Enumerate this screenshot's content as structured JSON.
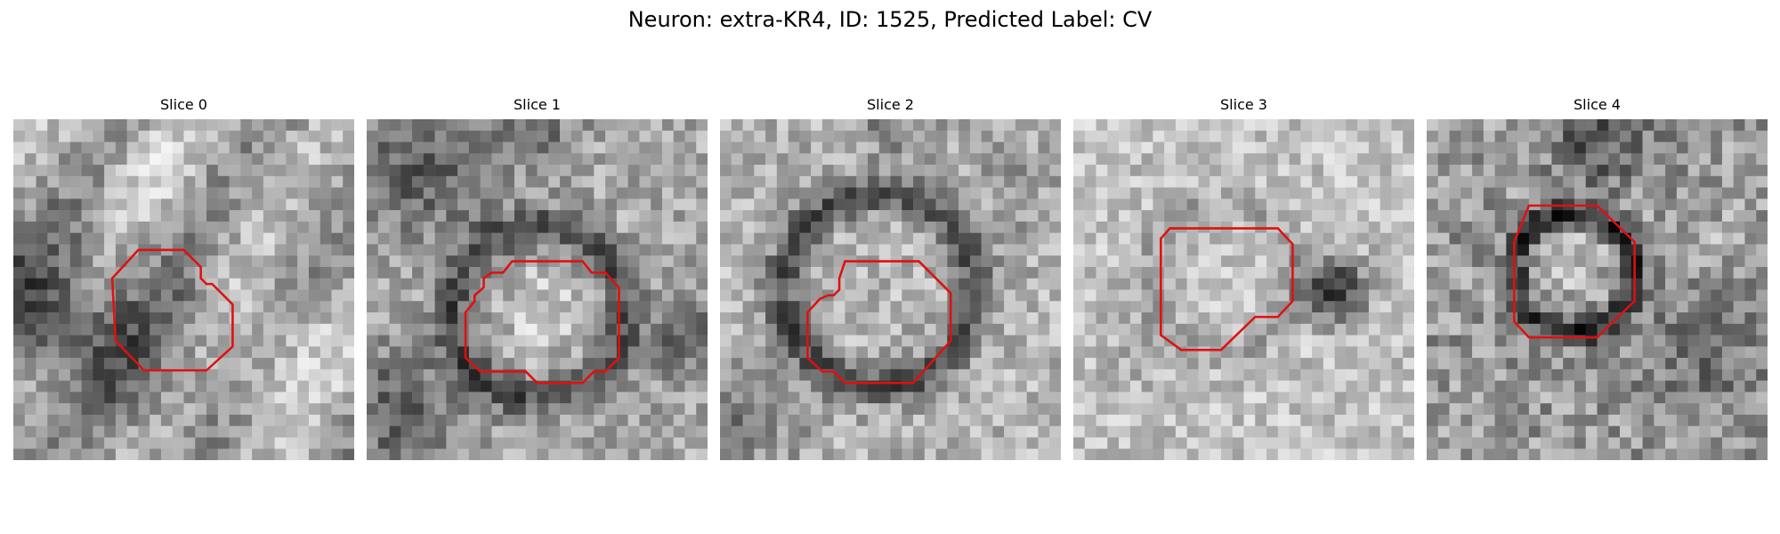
{
  "figure": {
    "title": "Neuron: extra-KR4, ID: 1525, Predicted Label: CV"
  },
  "outline_color": "#e01010",
  "slices": [
    {
      "title": "Slice 0"
    },
    {
      "title": "Slice 1"
    },
    {
      "title": "Slice 2"
    },
    {
      "title": "Slice 3"
    },
    {
      "title": "Slice 4"
    }
  ]
}
